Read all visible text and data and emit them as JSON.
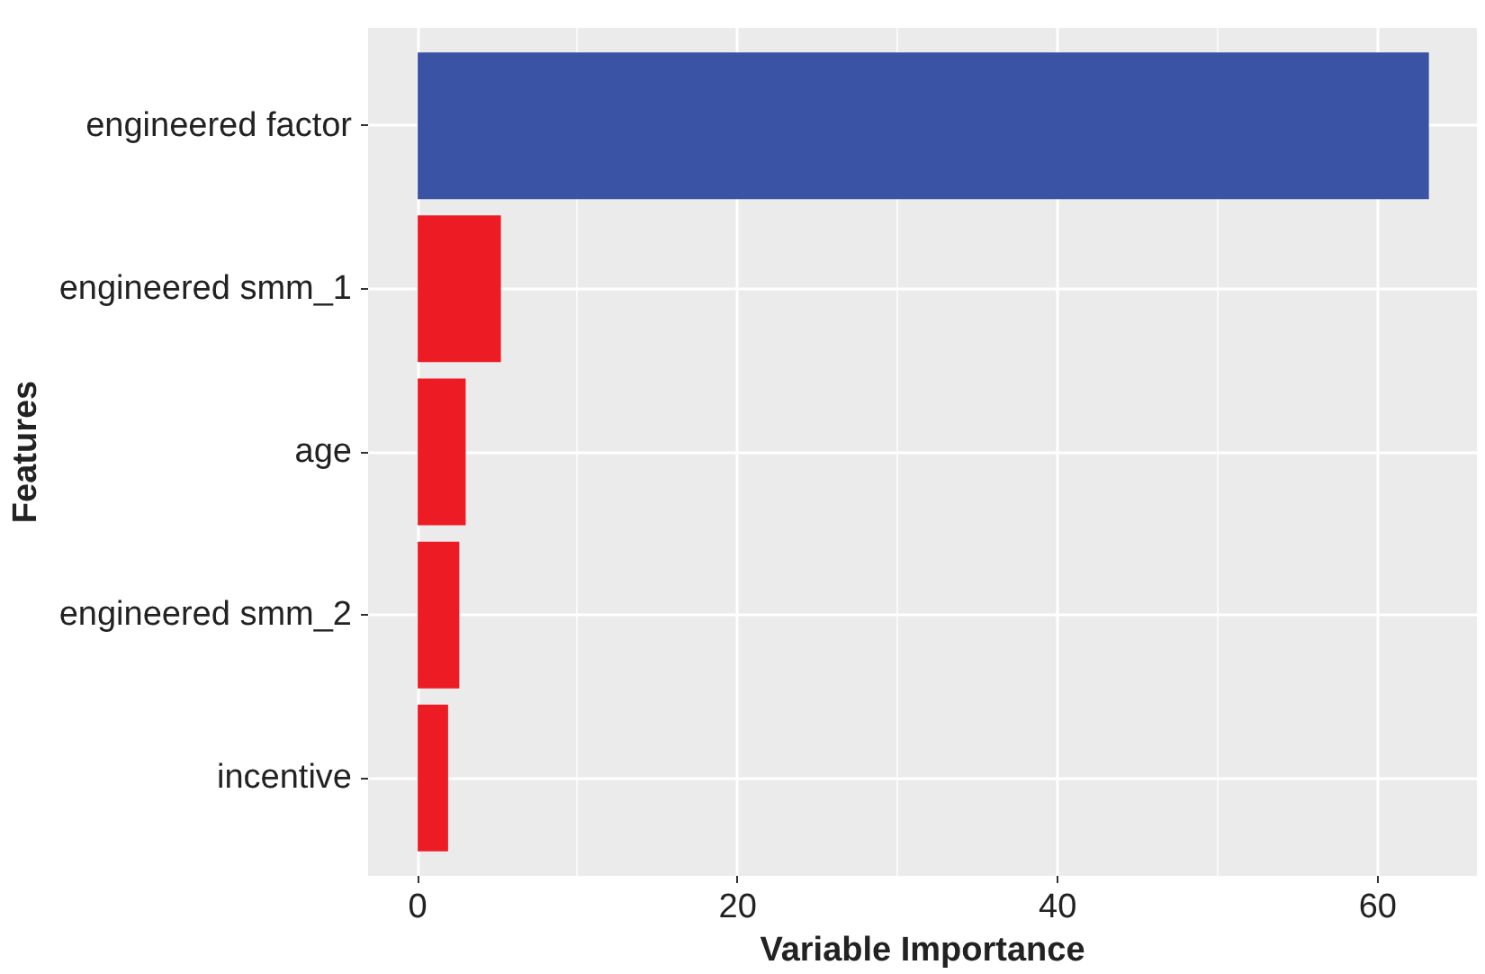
{
  "chart_data": {
    "type": "bar",
    "orientation": "horizontal",
    "xlabel": "Variable Importance",
    "ylabel": "Features",
    "categories": [
      "engineered factor",
      "engineered smm_1",
      "age",
      "engineered smm_2",
      "incentive"
    ],
    "values": [
      63.2,
      5.2,
      3.0,
      2.6,
      1.9
    ],
    "colors": [
      "#3a53a4",
      "#ed1c24",
      "#ed1c24",
      "#ed1c24",
      "#ed1c24"
    ],
    "xlim": [
      -3.1,
      66.2
    ],
    "xticks": [
      0,
      20,
      40,
      60
    ],
    "grid": true
  }
}
